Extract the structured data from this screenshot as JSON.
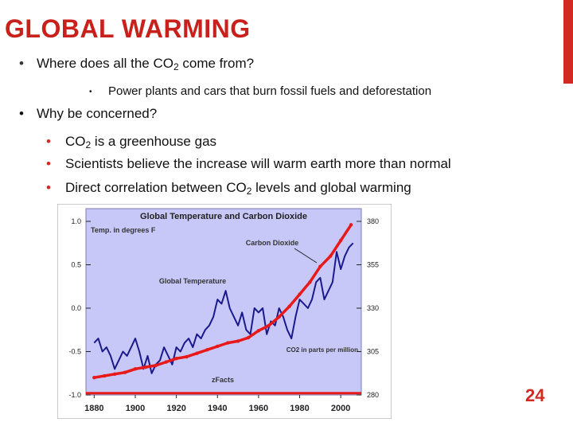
{
  "slide": {
    "title": "GLOBAL WARMING",
    "page_number": "24",
    "accent_color": "#d22a22"
  },
  "bullets": {
    "q1_pre": "Where does all the CO",
    "q1_sub": "2",
    "q1_post": " come from?",
    "q1_answer": "Power plants and cars that burn fossil fuels  and deforestation",
    "q2": "Why be concerned?",
    "r1_pre": "CO",
    "r1_sub": "2",
    "r1_post": " is a greenhouse gas",
    "r2": "Scientists believe the increase will warm earth more than normal",
    "r3_pre": "Direct correlation between CO",
    "r3_sub": "2",
    "r3_post": " levels and global warming"
  },
  "chart_data": {
    "type": "line",
    "title": "Global Temperature and Carbon Dioxide",
    "background_color": "#c8c8f8",
    "x_ticks": [
      "1880",
      "1900",
      "1920",
      "1940",
      "1960",
      "1980",
      "2000"
    ],
    "xlim": [
      1876,
      2010
    ],
    "y_left_ticks": [
      "1.0",
      "0.5",
      "0.0",
      "-0.5",
      "-1.0"
    ],
    "y_left_lim": [
      -1.0,
      1.0
    ],
    "y_right_ticks": [
      "380",
      "355",
      "330",
      "305",
      "280"
    ],
    "y_right_lim": [
      280,
      380
    ],
    "annotations": {
      "temp_unit": "Temp. in degrees F",
      "co2_label": "Carbon Dioxide",
      "global_temp_label": "Global Temperature",
      "co2_unit": "CO2 in parts per million",
      "source": "zFacts"
    },
    "series": [
      {
        "name": "Global Temperature",
        "axis": "left",
        "color": "#1a1a8c",
        "x": [
          1880,
          1882,
          1884,
          1886,
          1888,
          1890,
          1892,
          1894,
          1896,
          1898,
          1900,
          1902,
          1904,
          1906,
          1908,
          1910,
          1912,
          1914,
          1916,
          1918,
          1920,
          1922,
          1924,
          1926,
          1928,
          1930,
          1932,
          1934,
          1936,
          1938,
          1940,
          1942,
          1944,
          1946,
          1948,
          1950,
          1952,
          1954,
          1956,
          1958,
          1960,
          1962,
          1964,
          1966,
          1968,
          1970,
          1972,
          1974,
          1976,
          1978,
          1980,
          1982,
          1984,
          1986,
          1988,
          1990,
          1992,
          1994,
          1996,
          1998,
          2000,
          2002,
          2004,
          2006
        ],
        "y": [
          -0.4,
          -0.35,
          -0.5,
          -0.45,
          -0.55,
          -0.7,
          -0.6,
          -0.5,
          -0.55,
          -0.45,
          -0.35,
          -0.5,
          -0.7,
          -0.55,
          -0.75,
          -0.65,
          -0.6,
          -0.45,
          -0.55,
          -0.65,
          -0.45,
          -0.5,
          -0.4,
          -0.35,
          -0.45,
          -0.3,
          -0.35,
          -0.25,
          -0.2,
          -0.1,
          0.1,
          0.05,
          0.2,
          0.0,
          -0.1,
          -0.2,
          -0.05,
          -0.25,
          -0.3,
          0.0,
          -0.05,
          0.0,
          -0.3,
          -0.15,
          -0.2,
          0.0,
          -0.1,
          -0.25,
          -0.35,
          -0.1,
          0.1,
          0.05,
          0.0,
          0.1,
          0.3,
          0.35,
          0.1,
          0.2,
          0.3,
          0.65,
          0.45,
          0.6,
          0.7,
          0.75
        ]
      },
      {
        "name": "Carbon Dioxide",
        "axis": "right",
        "color": "#e8191a",
        "x": [
          1880,
          1885,
          1890,
          1895,
          1900,
          1905,
          1910,
          1915,
          1920,
          1925,
          1930,
          1935,
          1940,
          1945,
          1950,
          1955,
          1960,
          1965,
          1970,
          1975,
          1980,
          1985,
          1990,
          1995,
          2000,
          2005
        ],
        "y": [
          290,
          291,
          292,
          293,
          295,
          296,
          297,
          299,
          301,
          302,
          304,
          306,
          308,
          310,
          311,
          313,
          317,
          320,
          325,
          331,
          338,
          345,
          354,
          360,
          369,
          378
        ]
      },
      {
        "name": "baseline",
        "axis": "right",
        "color": "#e8191a",
        "x": [
          1876,
          2010
        ],
        "y": [
          281,
          281
        ]
      }
    ]
  }
}
